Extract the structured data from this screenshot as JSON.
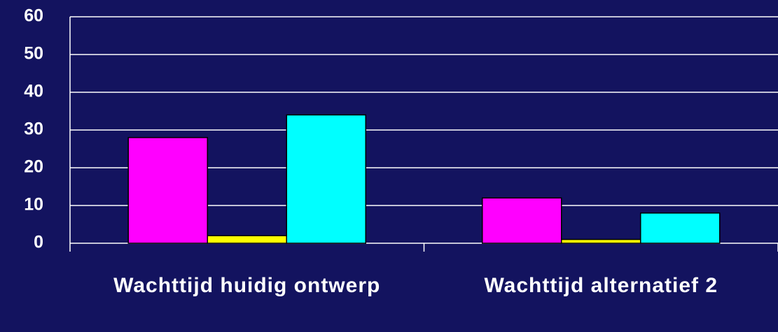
{
  "chart_data": {
    "type": "bar",
    "categories": [
      "Wachttijd huidig ontwerp",
      "Wachttijd alternatief 2"
    ],
    "series": [
      {
        "color": "#ff00ff",
        "values": [
          28,
          12
        ]
      },
      {
        "color": "#ffff00",
        "values": [
          2,
          1
        ]
      },
      {
        "color": "#00ffff",
        "values": [
          34,
          8
        ]
      }
    ],
    "ylim": [
      0,
      60
    ],
    "yticks": [
      0,
      10,
      20,
      30,
      40,
      50,
      60
    ],
    "grid": true
  }
}
